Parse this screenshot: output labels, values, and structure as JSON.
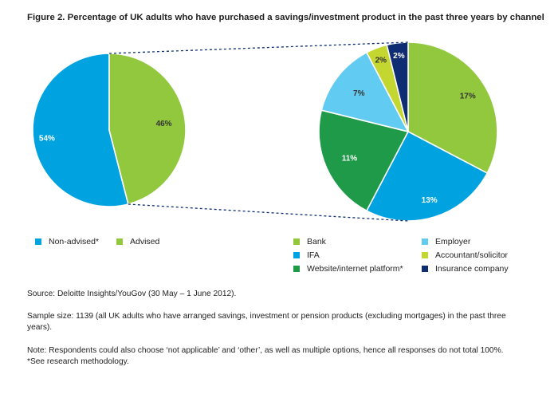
{
  "title": "Figure 2. Percentage of UK adults who have purchased a savings/investment product in the past three years by channel",
  "chart_data": [
    {
      "type": "pie",
      "slices": [
        {
          "label": "Non-advised*",
          "value": 54,
          "display": "54%",
          "color": "#00a3e0"
        },
        {
          "label": "Advised",
          "value": 46,
          "display": "46%",
          "color": "#92c83e"
        }
      ]
    },
    {
      "type": "pie",
      "slices": [
        {
          "label": "Bank",
          "value": 17,
          "display": "17%",
          "color": "#92c83e"
        },
        {
          "label": "IFA",
          "value": 13,
          "display": "13%",
          "color": "#00a3e0"
        },
        {
          "label": "Website/internet platform*",
          "value": 11,
          "display": "11%",
          "color": "#1e9a48"
        },
        {
          "label": "Employer",
          "value": 7,
          "display": "7%",
          "color": "#62cbf2"
        },
        {
          "label": "Accountant/solicitor",
          "value": 2,
          "display": "2%",
          "color": "#c4d630"
        },
        {
          "label": "Insurance company",
          "value": 2,
          "display": "2%",
          "color": "#0e2d72"
        }
      ]
    }
  ],
  "legend_left": [
    {
      "label": "Non-advised*",
      "color": "#00a3e0"
    },
    {
      "label": "Advised",
      "color": "#92c83e"
    }
  ],
  "legend_right": [
    {
      "label": "Bank",
      "color": "#92c83e"
    },
    {
      "label": "Employer",
      "color": "#62cbf2"
    },
    {
      "label": "IFA",
      "color": "#00a3e0"
    },
    {
      "label": "Accountant/solicitor",
      "color": "#c4d630"
    },
    {
      "label": "Website/internet platform*",
      "color": "#1e9a48"
    },
    {
      "label": "Insurance company",
      "color": "#0e2d72"
    }
  ],
  "notes": {
    "source": "Source: Deloitte Insights/YouGov (30 May – 1 June 2012).",
    "sample": "Sample size: 1139 (all UK adults who have arranged savings, investment or pension products (excluding mortgages) in the past three years).",
    "note": "Note: Respondents could also choose ‘not applicable’ and ‘other’, as well as multiple options, hence all responses do not total 100%.",
    "methodology": "*See research methodology."
  }
}
